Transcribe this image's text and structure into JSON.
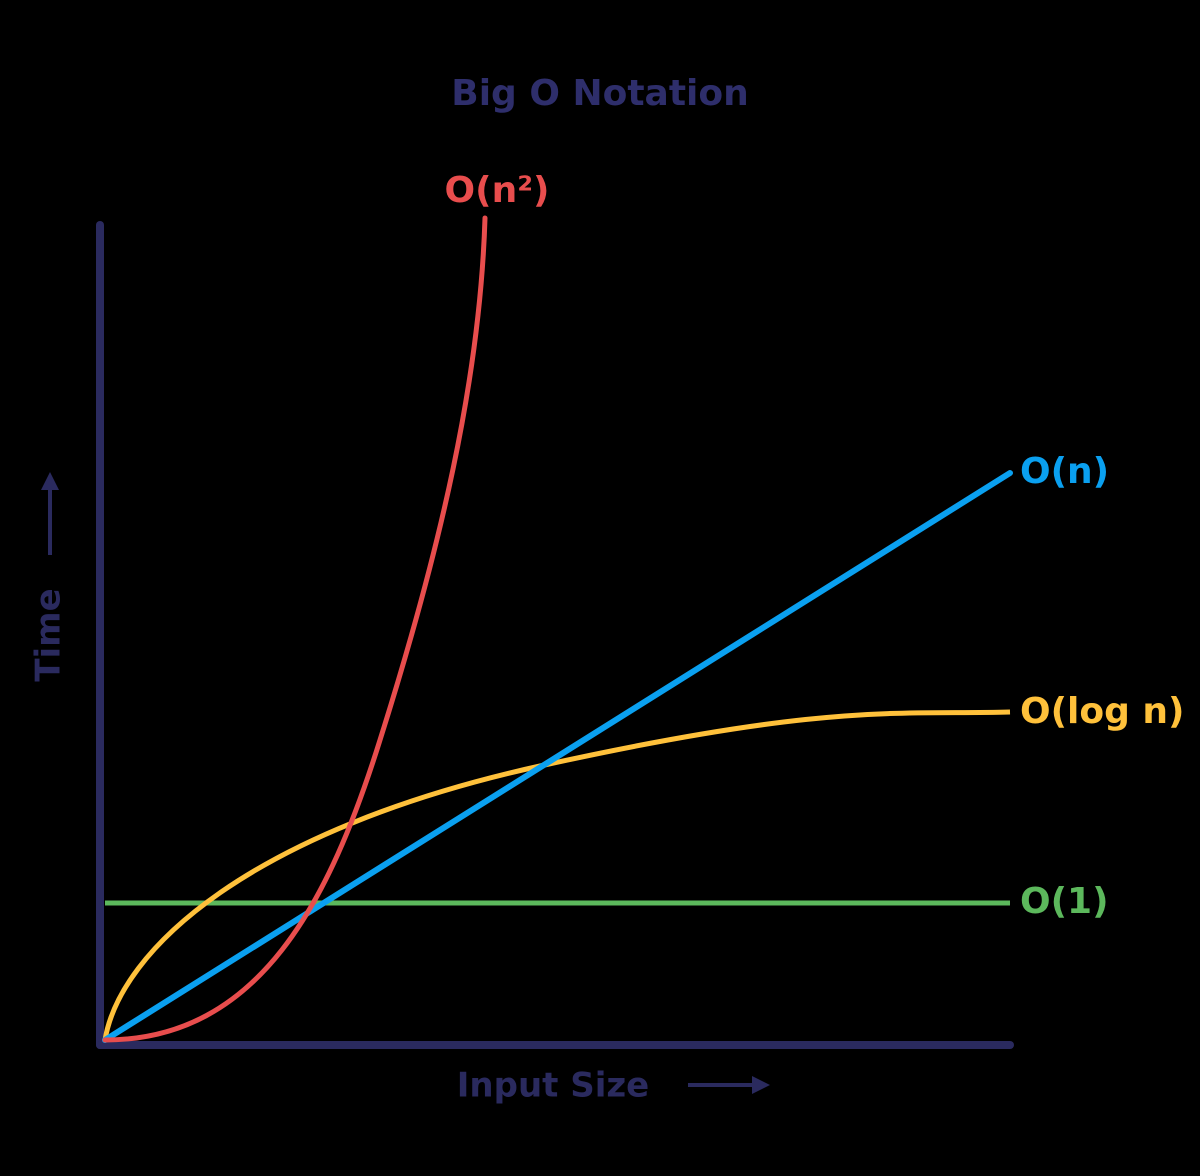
{
  "title": "Big O Notation",
  "axes": {
    "y_label": "Time",
    "x_label": "Input Size"
  },
  "curves": [
    {
      "label": "O(n²)"
    },
    {
      "label": "O(n)"
    },
    {
      "label": "O(log n)"
    },
    {
      "label": "O(1)"
    }
  ]
}
